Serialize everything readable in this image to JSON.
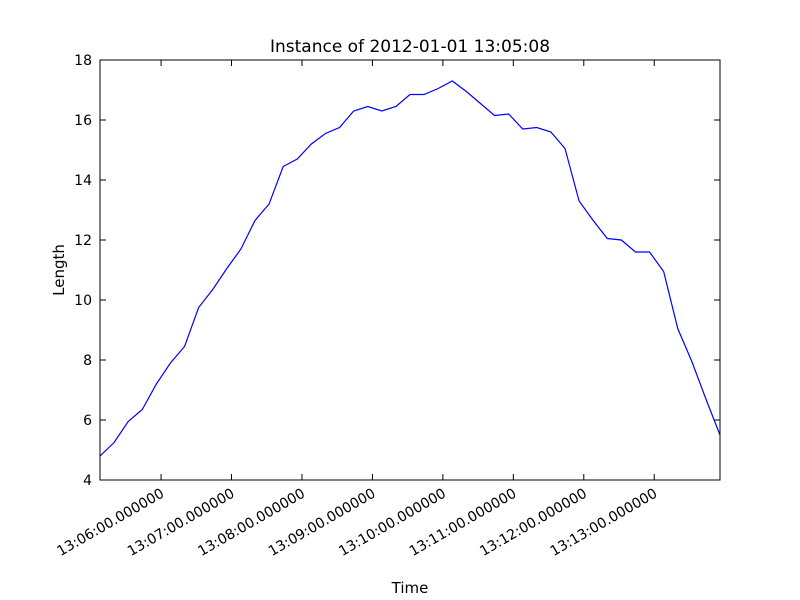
{
  "chart_data": {
    "type": "line",
    "title": "Instance of 2012-01-01 13:05:08",
    "xlabel": "Time",
    "ylabel": "Length",
    "ylim": [
      4,
      18
    ],
    "xlim": [
      "13:05:08",
      "13:13:56"
    ],
    "yticks": [
      "4",
      "6",
      "8",
      "10",
      "12",
      "14",
      "16",
      "18"
    ],
    "xticks": [
      {
        "t": "13:06:00",
        "label": "13:06:00.000000"
      },
      {
        "t": "13:07:00",
        "label": "13:07:00.000000"
      },
      {
        "t": "13:08:00",
        "label": "13:08:00.000000"
      },
      {
        "t": "13:09:00",
        "label": "13:09:00.000000"
      },
      {
        "t": "13:10:00",
        "label": "13:10:00.000000"
      },
      {
        "t": "13:11:00",
        "label": "13:11:00.000000"
      },
      {
        "t": "13:12:00",
        "label": "13:12:00.000000"
      },
      {
        "t": "13:13:00",
        "label": "13:13:00.000000"
      }
    ],
    "grid": false,
    "line_color": "#0000ff",
    "series": [
      {
        "x": [
          "13:05:08",
          "13:05:20",
          "13:05:32",
          "13:05:44",
          "13:05:56",
          "13:06:08",
          "13:06:20",
          "13:06:32",
          "13:06:44",
          "13:06:56",
          "13:07:08",
          "13:07:20",
          "13:07:32",
          "13:07:44",
          "13:07:56",
          "13:08:08",
          "13:08:20",
          "13:08:32",
          "13:08:44",
          "13:08:56",
          "13:09:08",
          "13:09:20",
          "13:09:32",
          "13:09:44",
          "13:09:56",
          "13:10:08",
          "13:10:20",
          "13:10:32",
          "13:10:44",
          "13:10:56",
          "13:11:08",
          "13:11:20",
          "13:11:32",
          "13:11:44",
          "13:11:56",
          "13:12:08",
          "13:12:20",
          "13:12:32",
          "13:12:44",
          "13:12:56",
          "13:13:08",
          "13:13:20",
          "13:13:32",
          "13:13:44",
          "13:13:56"
        ],
        "y": [
          4.8,
          5.25,
          5.95,
          6.35,
          7.2,
          7.9,
          8.45,
          9.75,
          10.35,
          11.05,
          11.7,
          12.65,
          13.2,
          14.45,
          14.7,
          15.2,
          15.55,
          15.75,
          16.3,
          16.45,
          16.3,
          16.45,
          16.85,
          16.85,
          17.05,
          17.3,
          16.95,
          16.55,
          16.15,
          16.2,
          15.7,
          15.75,
          15.6,
          15.05,
          13.3,
          12.65,
          12.05,
          12.0,
          11.6,
          11.6,
          10.95,
          9.05,
          7.95,
          6.7,
          5.5
        ]
      }
    ]
  }
}
